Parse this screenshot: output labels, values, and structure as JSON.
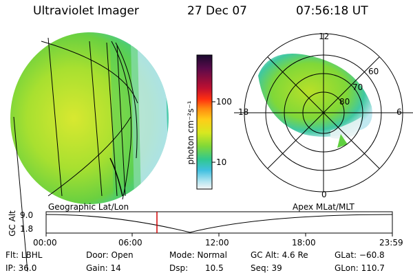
{
  "header": {
    "instrument": "Ultraviolet Imager",
    "date": "27 Dec 07",
    "time": "07:56:18 UT"
  },
  "colorbar": {
    "unit_label": "photon cm⁻²s⁻¹",
    "ticks": [
      "100",
      "10"
    ],
    "colors": [
      "#1a0a2e",
      "#5a0a4a",
      "#a0102a",
      "#e02020",
      "#ff7a10",
      "#ffc41a",
      "#e8e020",
      "#b0e020",
      "#60d040",
      "#30c8a0",
      "#40c0e0",
      "#a0e0f0",
      "#f4f4f4"
    ]
  },
  "polar_plot": {
    "mlt_labels": [
      "12",
      "18",
      "6",
      "0"
    ],
    "lat_labels": [
      "60",
      "70",
      "80"
    ]
  },
  "labels": {
    "geographic": "Geographic Lat/Lon",
    "apex": "Apex MLat/MLT"
  },
  "altitude_panel": {
    "axis_label": "GC Alt",
    "ticks": [
      "9.0",
      "1.8"
    ],
    "time_ticks": [
      "00:00",
      "06:00",
      "12:00",
      "18:00",
      "23:59"
    ],
    "marker_color": "#d00000"
  },
  "info": {
    "filter": "Flt: LBHL",
    "door": "Door: Open",
    "mode": "Mode: Normal",
    "gc_alt": "GC Alt: 4.6 Re",
    "glat": "GLat: −60.8",
    "ip": "IP: 36.0",
    "gain": "Gain: 14",
    "dsp_label": "Dsp:",
    "dsp_value": "10.5",
    "seq": "Seq: 39",
    "glon": "GLon: 110.7"
  }
}
